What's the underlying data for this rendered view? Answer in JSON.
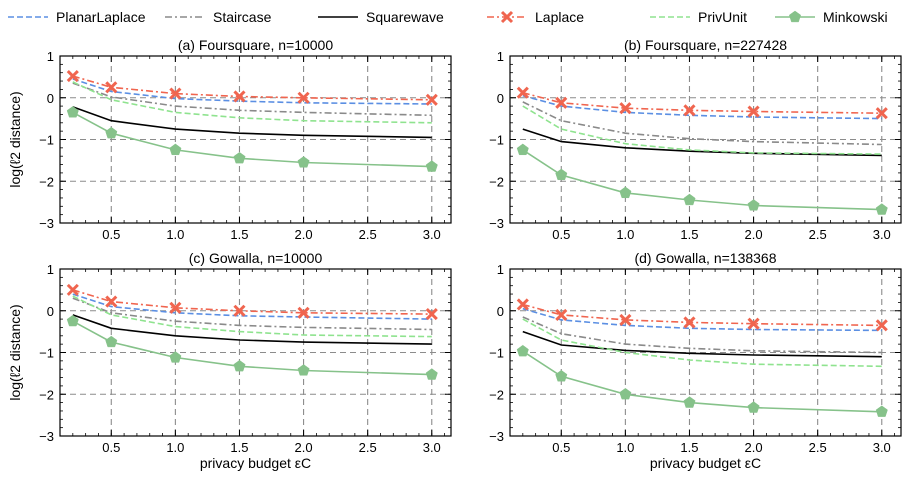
{
  "legend": [
    {
      "name": "PlanarLaplace",
      "color": "#5b8fe3",
      "style": "dashed",
      "marker": "none"
    },
    {
      "name": "Staircase",
      "color": "#8a8a8a",
      "style": "dashdot",
      "marker": "none"
    },
    {
      "name": "Squarewave",
      "color": "#000000",
      "style": "solid",
      "marker": "none"
    },
    {
      "name": "Laplace",
      "color": "#f0654f",
      "style": "dashdot",
      "marker": "x"
    },
    {
      "name": "PrivUnit",
      "color": "#8fe38f",
      "style": "dashed",
      "marker": "none"
    },
    {
      "name": "Minkowski",
      "color": "#86c28a",
      "style": "solid",
      "marker": "pentagon"
    }
  ],
  "chart_data": [
    {
      "type": "line",
      "title": "(a) Foursquare, n=10000",
      "ylabel": "log(ℓ2 distance)",
      "xlabel": "",
      "x": [
        0.2,
        0.5,
        1.0,
        1.5,
        2.0,
        3.0
      ],
      "xticks": [
        "0.5",
        "1.0",
        "1.5",
        "2.0",
        "2.5",
        "3.0"
      ],
      "yticks": [
        "−3",
        "−2",
        "−1",
        "0",
        "1"
      ],
      "xlim": [
        0.1,
        3.15
      ],
      "ylim": [
        -3,
        1
      ],
      "series": [
        {
          "name": "PlanarLaplace",
          "values": [
            0.45,
            0.15,
            -0.02,
            -0.08,
            -0.12,
            -0.15
          ]
        },
        {
          "name": "Staircase",
          "values": [
            0.35,
            0.02,
            -0.2,
            -0.3,
            -0.35,
            -0.42
          ]
        },
        {
          "name": "Squarewave",
          "values": [
            -0.22,
            -0.55,
            -0.75,
            -0.85,
            -0.9,
            -0.95
          ]
        },
        {
          "name": "Laplace",
          "values": [
            0.52,
            0.25,
            0.1,
            0.03,
            0.0,
            -0.05
          ]
        },
        {
          "name": "PrivUnit",
          "values": [
            0.38,
            -0.05,
            -0.35,
            -0.48,
            -0.55,
            -0.6
          ]
        },
        {
          "name": "Minkowski",
          "values": [
            -0.35,
            -0.85,
            -1.25,
            -1.45,
            -1.55,
            -1.65
          ]
        }
      ]
    },
    {
      "type": "line",
      "title": "(b) Foursquare, n=227428",
      "ylabel": "",
      "xlabel": "",
      "x": [
        0.2,
        0.5,
        1.0,
        1.5,
        2.0,
        3.0
      ],
      "xticks": [
        "0.5",
        "1.0",
        "1.5",
        "2.0",
        "2.5",
        "3.0"
      ],
      "yticks": [
        "−3",
        "−2",
        "−1",
        "0",
        "1"
      ],
      "xlim": [
        0.1,
        3.15
      ],
      "ylim": [
        -3,
        1
      ],
      "series": [
        {
          "name": "PlanarLaplace",
          "values": [
            0.05,
            -0.2,
            -0.35,
            -0.42,
            -0.46,
            -0.5
          ]
        },
        {
          "name": "Staircase",
          "values": [
            -0.1,
            -0.55,
            -0.85,
            -0.98,
            -1.05,
            -1.12
          ]
        },
        {
          "name": "Squarewave",
          "values": [
            -0.75,
            -1.05,
            -1.2,
            -1.28,
            -1.33,
            -1.38
          ]
        },
        {
          "name": "Laplace",
          "values": [
            0.12,
            -0.12,
            -0.25,
            -0.3,
            -0.33,
            -0.37
          ]
        },
        {
          "name": "PrivUnit",
          "values": [
            -0.2,
            -0.75,
            -1.1,
            -1.25,
            -1.32,
            -1.35
          ]
        },
        {
          "name": "Minkowski",
          "values": [
            -1.25,
            -1.85,
            -2.28,
            -2.45,
            -2.58,
            -2.68
          ]
        }
      ]
    },
    {
      "type": "line",
      "title": "(c) Gowalla, n=10000",
      "ylabel": "log(ℓ2 distance)",
      "xlabel": "privacy budget εC",
      "x": [
        0.2,
        0.5,
        1.0,
        1.5,
        2.0,
        3.0
      ],
      "xticks": [
        "0.5",
        "1.0",
        "1.5",
        "2.0",
        "2.5",
        "3.0"
      ],
      "yticks": [
        "−3",
        "−2",
        "−1",
        "0",
        "1"
      ],
      "xlim": [
        0.1,
        3.15
      ],
      "ylim": [
        -3,
        1
      ],
      "series": [
        {
          "name": "PlanarLaplace",
          "values": [
            0.4,
            0.1,
            -0.05,
            -0.12,
            -0.15,
            -0.2
          ]
        },
        {
          "name": "Staircase",
          "values": [
            0.3,
            -0.05,
            -0.25,
            -0.35,
            -0.4,
            -0.45
          ]
        },
        {
          "name": "Squarewave",
          "values": [
            -0.1,
            -0.42,
            -0.6,
            -0.7,
            -0.75,
            -0.8
          ]
        },
        {
          "name": "Laplace",
          "values": [
            0.5,
            0.22,
            0.07,
            0.0,
            -0.05,
            -0.08
          ]
        },
        {
          "name": "PrivUnit",
          "values": [
            0.35,
            -0.1,
            -0.38,
            -0.5,
            -0.58,
            -0.62
          ]
        },
        {
          "name": "Minkowski",
          "values": [
            -0.25,
            -0.75,
            -1.12,
            -1.33,
            -1.43,
            -1.53
          ]
        }
      ]
    },
    {
      "type": "line",
      "title": "(d) Gowalla, n=138368",
      "ylabel": "",
      "xlabel": "privacy budget εC",
      "x": [
        0.2,
        0.5,
        1.0,
        1.5,
        2.0,
        3.0
      ],
      "xticks": [
        "0.5",
        "1.0",
        "1.5",
        "2.0",
        "2.5",
        "3.0"
      ],
      "yticks": [
        "−3",
        "−2",
        "−1",
        "0",
        "1"
      ],
      "xlim": [
        0.1,
        3.15
      ],
      "ylim": [
        -3,
        1
      ],
      "series": [
        {
          "name": "PlanarLaplace",
          "values": [
            0.05,
            -0.22,
            -0.35,
            -0.42,
            -0.45,
            -0.47
          ]
        },
        {
          "name": "Staircase",
          "values": [
            -0.15,
            -0.55,
            -0.8,
            -0.9,
            -0.96,
            -1.0
          ]
        },
        {
          "name": "Squarewave",
          "values": [
            -0.5,
            -0.82,
            -0.95,
            -1.02,
            -1.06,
            -1.1
          ]
        },
        {
          "name": "Laplace",
          "values": [
            0.15,
            -0.1,
            -0.22,
            -0.28,
            -0.31,
            -0.35
          ]
        },
        {
          "name": "PrivUnit",
          "values": [
            -0.2,
            -0.7,
            -1.0,
            -1.18,
            -1.28,
            -1.33
          ]
        },
        {
          "name": "Minkowski",
          "values": [
            -0.97,
            -1.57,
            -2.0,
            -2.2,
            -2.32,
            -2.42
          ]
        }
      ]
    }
  ]
}
